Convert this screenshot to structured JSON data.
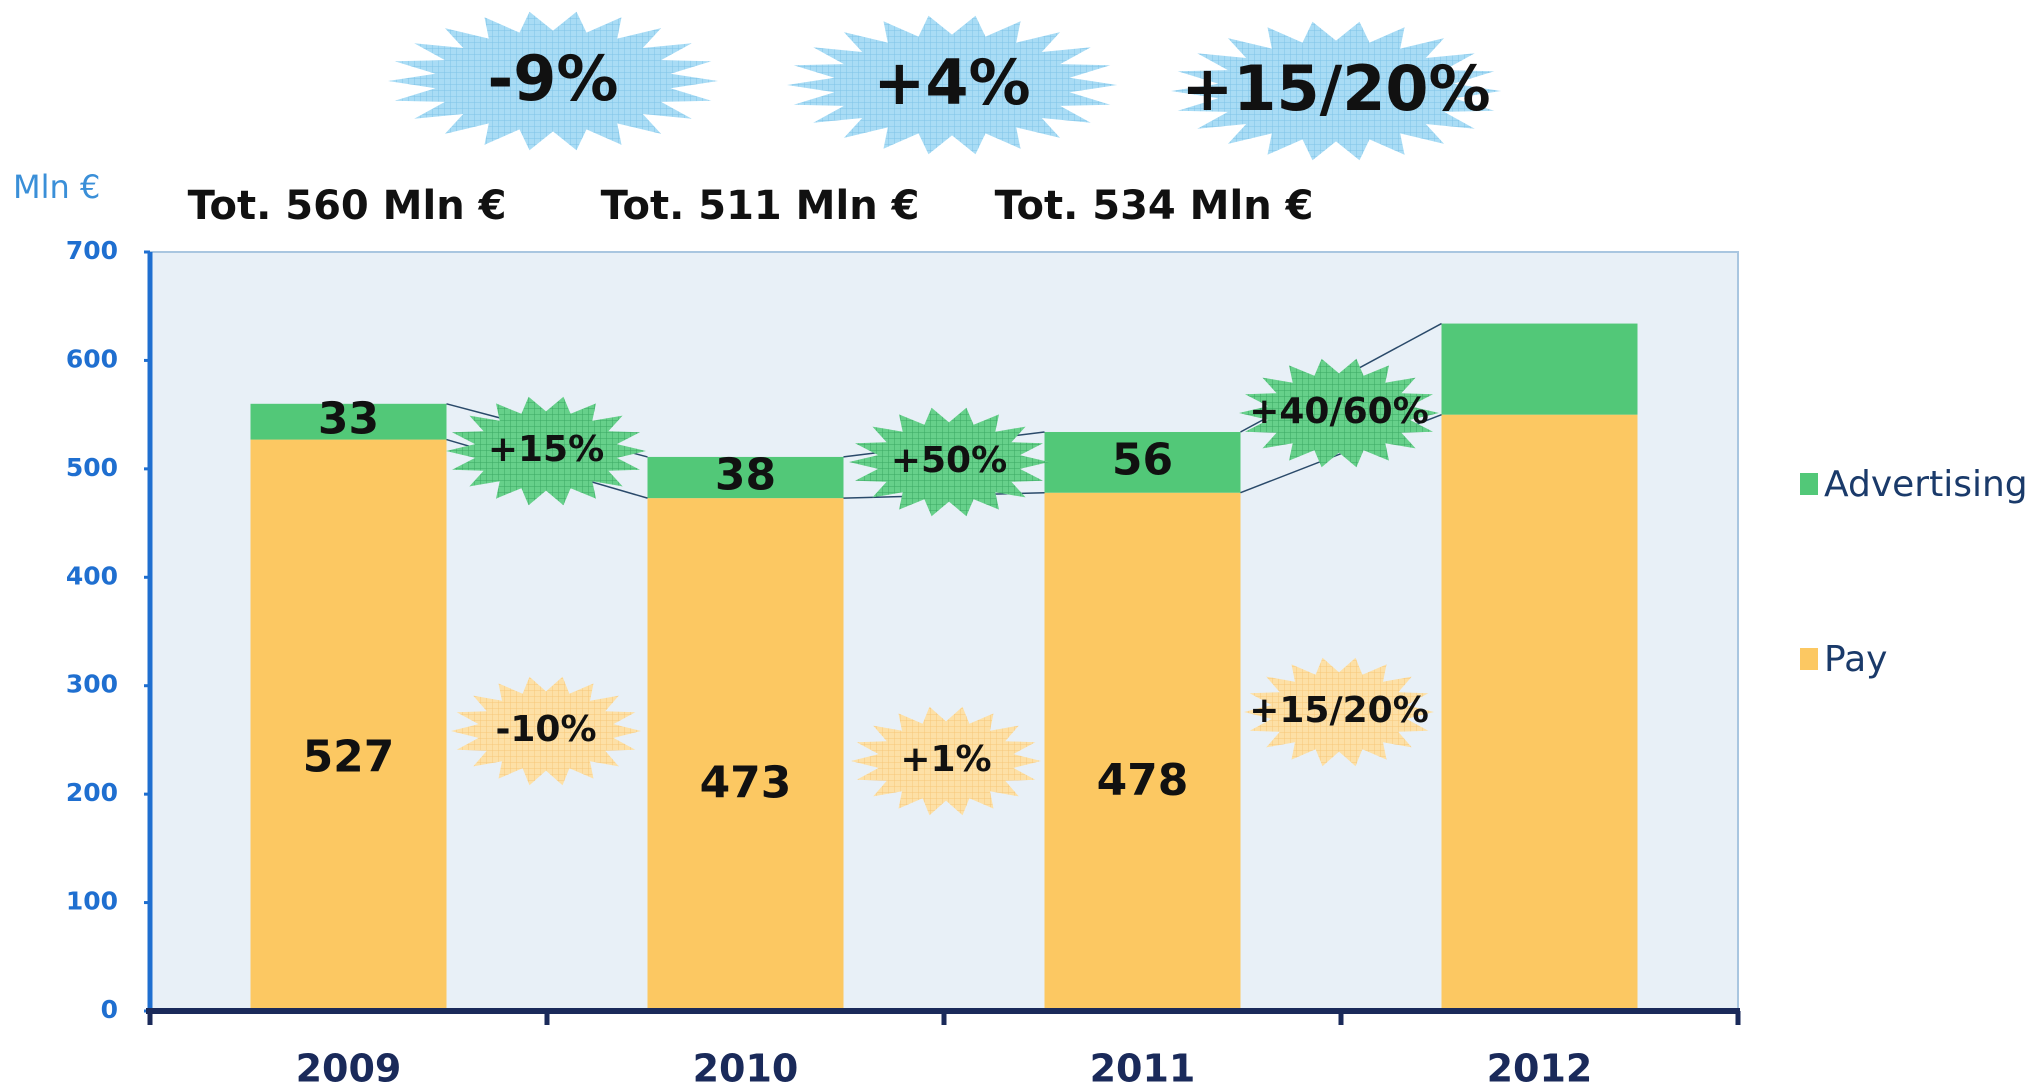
{
  "chart_data": {
    "type": "stacked-bar",
    "y_axis_label": "Mln €",
    "categories": [
      "2009",
      "2010",
      "2011",
      "2012"
    ],
    "series": [
      {
        "name": "Pay",
        "color": "#fcc862",
        "values": [
          527,
          473,
          478,
          550
        ],
        "value_labels": [
          "527",
          "473",
          "478",
          null
        ]
      },
      {
        "name": "Advertising",
        "color": "#52c878",
        "values": [
          33,
          38,
          56,
          84
        ],
        "value_labels": [
          "33",
          "38",
          "56",
          null
        ]
      }
    ],
    "ylim": [
      0,
      700
    ],
    "yticks": [
      0,
      100,
      200,
      300,
      400,
      500,
      600,
      700
    ],
    "annotations": {
      "total_changes": [
        "-9%",
        "+4%",
        "+15/20%"
      ],
      "totals": [
        "Tot. 560 Mln €",
        "Tot. 511 Mln €",
        "Tot. 534 Mln €"
      ],
      "advertising_changes": [
        "+15%",
        "+50%",
        "+40/60%"
      ],
      "pay_changes": [
        "-10%",
        "+1%",
        "+15/20%"
      ]
    }
  }
}
